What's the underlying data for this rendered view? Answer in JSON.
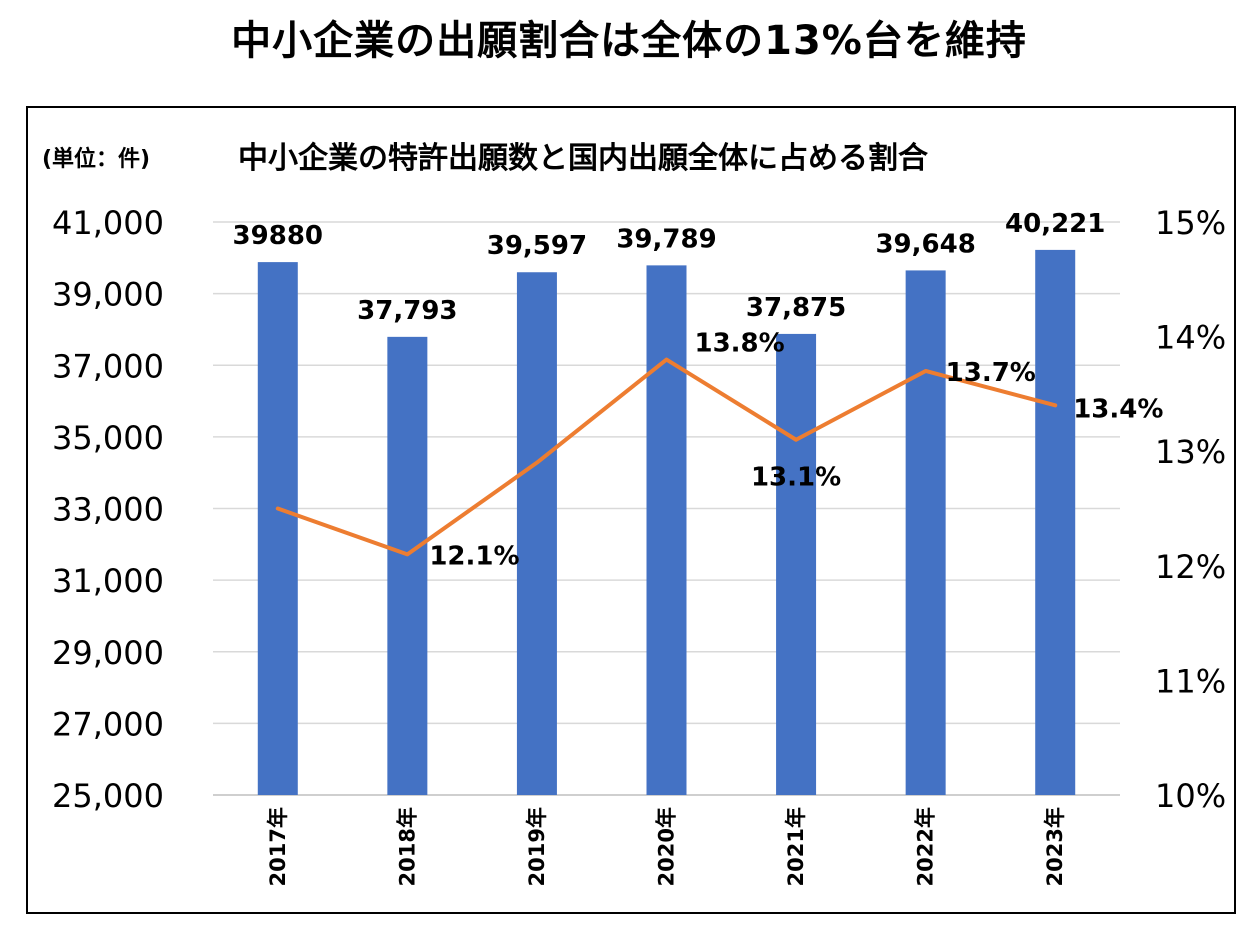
{
  "page": {
    "title": "中小企業の出願割合は全体の13%台を維持"
  },
  "chart_data": {
    "type": "bar+line",
    "title": "中小企業の特許出願数と国内出願全体に占める割合",
    "unit_label": "(単位：件)",
    "categories": [
      "2017年",
      "2018年",
      "2019年",
      "2020年",
      "2021年",
      "2022年",
      "2023年"
    ],
    "series": [
      {
        "type": "bar",
        "axis": "left",
        "values": [
          39880,
          37793,
          39597,
          39789,
          37875,
          39648,
          40221
        ],
        "data_labels": [
          "39880",
          "37,793",
          "39,597",
          "39,789",
          "37,875",
          "39,648",
          "40,221"
        ]
      },
      {
        "type": "line",
        "axis": "right",
        "values": [
          12.5,
          12.1,
          12.9,
          13.8,
          13.1,
          13.7,
          13.4
        ],
        "data_labels": [
          "",
          "12.1%",
          "",
          "13.8%",
          "13.1%",
          "13.7%",
          "13.4%"
        ]
      }
    ],
    "y_left": {
      "min": 25000,
      "max": 41000,
      "step": 2000,
      "tick_labels": [
        "25,000",
        "27,000",
        "29,000",
        "31,000",
        "33,000",
        "35,000",
        "37,000",
        "39,000",
        "41,000"
      ]
    },
    "y_right": {
      "min": 10,
      "max": 15,
      "step": 1,
      "tick_labels": [
        "10%",
        "11%",
        "12%",
        "13%",
        "14%",
        "15%"
      ]
    },
    "grid": true,
    "legend": "none",
    "colors": {
      "bar": "#4472C4",
      "line": "#ED7D31",
      "grid": "#D9D9D9"
    }
  }
}
